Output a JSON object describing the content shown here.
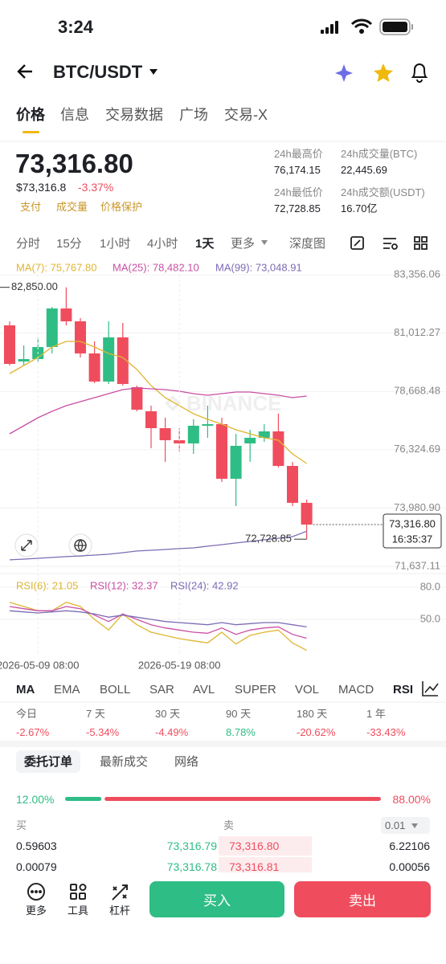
{
  "status_bar": {
    "time": "3:24"
  },
  "header": {
    "pair": "BTC/USDT"
  },
  "tabs": [
    "价格",
    "信息",
    "交易数据",
    "广场",
    "交易-X"
  ],
  "price": {
    "last": "73,316.80",
    "usd": "$73,316.8",
    "change": "-3.37%",
    "tags": [
      "支付",
      "成交量",
      "价格保护"
    ]
  },
  "stats": [
    {
      "label": "24h最高价",
      "value": "76,174.15"
    },
    {
      "label": "24h成交量(BTC)",
      "value": "22,445.69"
    },
    {
      "label": "24h最低价",
      "value": "72,728.85"
    },
    {
      "label": "24h成交额(USDT)",
      "value": "16.70亿"
    }
  ],
  "intervals": [
    "分时",
    "15分",
    "1小时",
    "4小时",
    "1天",
    "更多",
    "深度图"
  ],
  "chart_data": [
    {
      "type": "candlestick",
      "open": [
        81322,
        79870,
        79966,
        80451,
        82000,
        81484,
        80193,
        79063,
        80838,
        78837,
        77868,
        77190,
        76706,
        76577,
        77287,
        77352,
        75157,
        76577,
        76803,
        77061,
        75673,
        74189
      ],
      "high": [
        81484,
        80515,
        80838,
        82065,
        82850,
        81613,
        80677,
        81484,
        81419,
        78901,
        78095,
        77610,
        77190,
        77545,
        78095,
        77610,
        76964,
        77126,
        77352,
        77771,
        75835,
        74318
      ],
      "low": [
        79708,
        79708,
        79870,
        80193,
        81322,
        80031,
        78998,
        78966,
        78901,
        77868,
        76384,
        75835,
        76254,
        76157,
        76803,
        75028,
        74059,
        75835,
        76641,
        75609,
        74059,
        72728.85
      ],
      "close": [
        79773,
        79966,
        80451,
        82000,
        81484,
        80193,
        79063,
        80838,
        78966,
        77933,
        77190,
        76706,
        76577,
        77287,
        77352,
        75157,
        76480,
        76803,
        77061,
        75673,
        74189,
        73316.8
      ],
      "up_color": "#2ebd85",
      "down_color": "#ef4d5d",
      "series": [
        {
          "name": "MA(7): 75,767.80",
          "color": "#e0b530",
          "values": [
            79386,
            79708,
            80031,
            80451,
            80677,
            80677,
            80451,
            80193,
            80031,
            79547,
            78901,
            78417,
            78094,
            77772,
            77546,
            77352,
            77126,
            76965,
            76803,
            76706,
            76158,
            75767.8
          ]
        },
        {
          "name": "MA(25): 78,482.10",
          "color": "#c94fa3",
          "values": [
            76965,
            77287,
            77610,
            77868,
            78094,
            78256,
            78417,
            78579,
            78740,
            78805,
            78772,
            78740,
            78675,
            78579,
            78514,
            78579,
            78643,
            78643,
            78579,
            78514,
            78417,
            78482.1
          ]
        },
        {
          "name": "MA(99): 73,048.91",
          "color": "#7d6bb5",
          "values": [
            71897,
            71929,
            71961,
            71994,
            72026,
            72058,
            72090,
            72123,
            72187,
            72252,
            72284,
            72316,
            72349,
            72381,
            72446,
            72510,
            72575,
            72639,
            72704,
            72768,
            72833,
            73048.91
          ]
        }
      ],
      "ylim": [
        71411,
        83743
      ],
      "yticks": [
        {
          "value": 83356.06,
          "label": "83,356.06"
        },
        {
          "value": 81012.27,
          "label": "81,012.27"
        },
        {
          "value": 78668.48,
          "label": "78,668.48"
        },
        {
          "value": 76324.69,
          "label": "76,324.69"
        },
        {
          "value": 73980.9,
          "label": "73,980.90"
        },
        {
          "value": 71637.11,
          "label": "71,637.11"
        }
      ],
      "grid": true,
      "high_label": {
        "value": 82850,
        "label": "82,850.00"
      },
      "low_label": {
        "value": 72728.85,
        "label": "72,728.85"
      },
      "last_price": {
        "value": 73316.8,
        "label": "73,316.80",
        "time": "16:35:37"
      },
      "watermark": "BINANCE"
    },
    {
      "type": "line",
      "categories": [
        null,
        null,
        "2026-05-09 08:00",
        null,
        null,
        null,
        null,
        null,
        null,
        null,
        null,
        null,
        "2026-05-19 08:00",
        null,
        null,
        null,
        null,
        null,
        null,
        null,
        null,
        null
      ],
      "series": [
        {
          "name": "RSI(6): 21.05",
          "color": "#e0b530",
          "values": [
            66,
            62,
            58,
            58,
            66,
            62,
            50,
            40,
            55,
            45,
            38,
            35,
            32,
            30,
            28,
            38,
            27,
            35,
            38,
            40,
            28,
            21.05
          ]
        },
        {
          "name": "RSI(12): 32.37",
          "color": "#c94fa3",
          "values": [
            62,
            60,
            58,
            58,
            62,
            60,
            54,
            48,
            55,
            50,
            45,
            42,
            40,
            38,
            37,
            42,
            36,
            40,
            42,
            43,
            36,
            32.37
          ]
        },
        {
          "name": "RSI(24): 42.92",
          "color": "#7d6bb5",
          "values": [
            58,
            57,
            56,
            57,
            58,
            57,
            55,
            52,
            54,
            52,
            50,
            48,
            47,
            46,
            45,
            47,
            45,
            46,
            47,
            47,
            45,
            42.92
          ]
        }
      ],
      "ylim": [
        17,
        92
      ],
      "yticks": [
        {
          "value": 80,
          "label": "80.0"
        },
        {
          "value": 50,
          "label": "50.0"
        }
      ]
    }
  ],
  "indicators": [
    "MA",
    "EMA",
    "BOLL",
    "SAR",
    "AVL",
    "SUPER",
    "VOL",
    "MACD",
    "RSI"
  ],
  "performance": [
    {
      "period": "今日",
      "change": "-2.67%"
    },
    {
      "period": "7 天",
      "change": "-5.34%"
    },
    {
      "period": "30 天",
      "change": "-4.49%"
    },
    {
      "period": "90 天",
      "change": "8.78%"
    },
    {
      "period": "180 天",
      "change": "-20.62%"
    },
    {
      "period": "1 年",
      "change": "-33.43%"
    }
  ],
  "book_tabs": [
    "委托订单",
    "最新成交",
    "网络"
  ],
  "book_ratio": {
    "values": [
      12,
      88
    ],
    "value_labels": [
      "12.00%",
      "88.00%"
    ],
    "colors": [
      "#2ebd85",
      "#ef4d5d"
    ]
  },
  "book": {
    "buy_label": "买",
    "sell_label": "卖",
    "precision": "0.01",
    "rows": [
      [
        "0.59603",
        "73,316.79",
        "73,316.80",
        "6.22106"
      ],
      [
        "0.00079",
        "73,316.78",
        "73,316.81",
        "0.00056"
      ]
    ]
  },
  "bottom_bar": {
    "tools": [
      "更多",
      "工具",
      "杠杆"
    ],
    "buy": "买入",
    "sell": "卖出"
  }
}
